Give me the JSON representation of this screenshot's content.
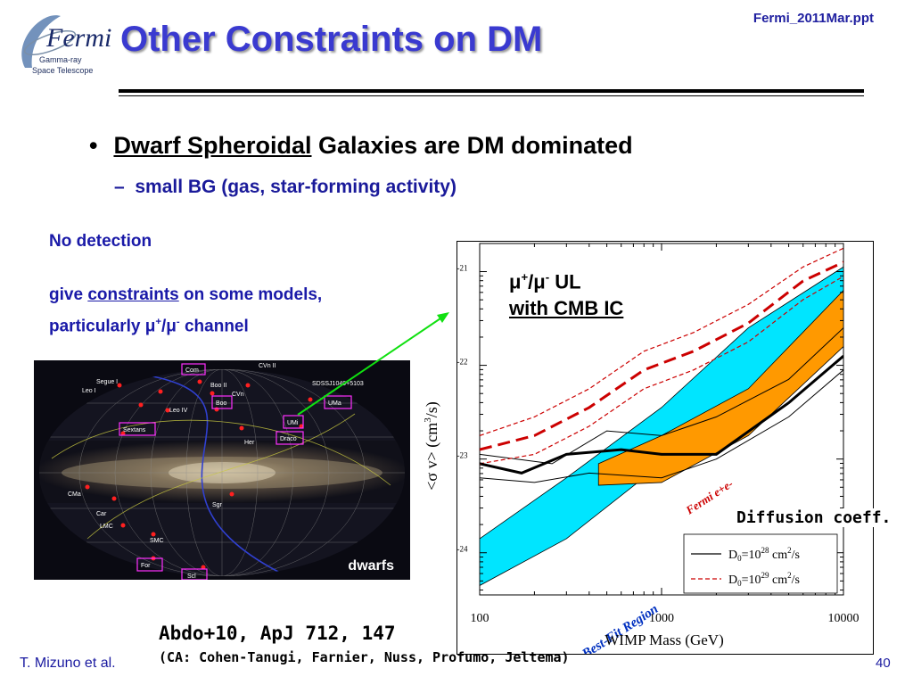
{
  "header": {
    "title": "Other Constraints on DM",
    "file_name": "Fermi_2011Mar.ppt",
    "logo": {
      "name": "Fermi",
      "line1": "Gamma-ray",
      "line2": "Space Telescope"
    }
  },
  "bullets": {
    "main_underlined": "Dwarf Spheroidal",
    "main_rest": " Galaxies are DM dominated",
    "sub": "small BG (gas, star-forming activity)"
  },
  "note": {
    "line1": "No detection",
    "line2_pre": "give ",
    "line2_link": "constraints",
    "line2_post": " on some models,",
    "line3_pre": "particularly ",
    "mu": "μ",
    "plus": "+",
    "slash": "/",
    "minus": "-",
    "line3_post": " channel"
  },
  "sky_map": {
    "label": "dwarfs",
    "boxed": [
      "Com",
      "UMa",
      "Boo",
      "UMi",
      "Draco",
      "Sextans",
      "For",
      "Scl"
    ],
    "plain": [
      "CVn II",
      "Segue I",
      "Leo I",
      "Boo II",
      "CVn",
      "Leo IV",
      "SDSSJ1049+5103",
      "Her",
      "CMa",
      "Car",
      "LMC",
      "SMC",
      "Sgr"
    ]
  },
  "plot_annotation": {
    "line1_mu": "μ",
    "plus": "+",
    "slash": "/",
    "minus": "-",
    "line1_suffix": " UL",
    "line2": "with CMB IC"
  },
  "diffusion_label": "Diffusion coeff.",
  "references": {
    "main": "Abdo+10, ApJ 712, 147",
    "authors": "(CA: Cohen-Tanugi, Farnier, Nuss, Profumo, Jeltema)"
  },
  "footer": {
    "author": "T. Mizuno et al.",
    "page": "40"
  },
  "chart_data": {
    "type": "line",
    "xlabel": "WIMP Mass (GeV)",
    "ylabel_main": "<σ v> (cm",
    "ylabel_exp": "3",
    "ylabel_tail": "/s)",
    "x_scale": "log",
    "y_scale": "log",
    "xlim": [
      100,
      10000
    ],
    "ylim_log10": [
      -24.45,
      -20.7
    ],
    "x_ticks": [
      100,
      1000,
      10000
    ],
    "x_tick_labels": [
      "100",
      "1000",
      "10000"
    ],
    "y_ticks_log10": [
      -24,
      -23,
      -22,
      -21
    ],
    "y_tick_labels": [
      {
        "base": "10",
        "exp": "-24"
      },
      {
        "base": "10",
        "exp": "-23"
      },
      {
        "base": "10",
        "exp": "-22"
      },
      {
        "base": "10",
        "exp": "-21"
      }
    ],
    "legend_position": "bottom-right",
    "legend": [
      {
        "base": "D",
        "sub": "0",
        "eq": "=10",
        "exp": "28",
        "unit": " cm",
        "unit_exp": "2",
        "tail": "/s",
        "style": "solid",
        "color": "#000000"
      },
      {
        "base": "D",
        "sub": "0",
        "eq": "=10",
        "exp": "29",
        "unit": " cm",
        "unit_exp": "2",
        "tail": "/s",
        "style": "dashed",
        "color": "#cc0000"
      }
    ],
    "bands": [
      {
        "name": "Pamela Best-Fit Region",
        "color": "#00e5ff",
        "upper": [
          [
            100,
            -23.85
          ],
          [
            300,
            -23.2
          ],
          [
            1000,
            -22.45
          ],
          [
            3000,
            -21.6
          ],
          [
            10000,
            -20.95
          ]
        ],
        "lower": [
          [
            100,
            -24.35
          ],
          [
            300,
            -23.85
          ],
          [
            1000,
            -23.05
          ],
          [
            3000,
            -22.3
          ],
          [
            10000,
            -21.55
          ]
        ]
      },
      {
        "name": "Fermi e+e-",
        "color": "#ff9900",
        "upper": [
          [
            450,
            -23.05
          ],
          [
            1000,
            -22.75
          ],
          [
            3000,
            -22.25
          ],
          [
            10000,
            -21.2
          ]
        ],
        "lower": [
          [
            450,
            -23.28
          ],
          [
            1000,
            -23.25
          ],
          [
            3000,
            -22.75
          ],
          [
            10000,
            -21.8
          ]
        ]
      }
    ],
    "series": [
      {
        "style": "solid",
        "color": "#000000",
        "width": 3,
        "points": [
          [
            100,
            -23.05
          ],
          [
            170,
            -23.15
          ],
          [
            300,
            -22.95
          ],
          [
            600,
            -22.9
          ],
          [
            1000,
            -22.95
          ],
          [
            2000,
            -22.95
          ],
          [
            5000,
            -22.4
          ],
          [
            10000,
            -21.9
          ]
        ]
      },
      {
        "style": "solid",
        "color": "#000000",
        "width": 1,
        "points": [
          [
            100,
            -22.95
          ],
          [
            250,
            -23.05
          ],
          [
            500,
            -22.7
          ],
          [
            1000,
            -22.75
          ],
          [
            2000,
            -22.55
          ],
          [
            5000,
            -22.15
          ],
          [
            10000,
            -21.6
          ]
        ]
      },
      {
        "style": "solid",
        "color": "#000000",
        "width": 1,
        "points": [
          [
            100,
            -23.2
          ],
          [
            200,
            -23.25
          ],
          [
            400,
            -23.15
          ],
          [
            1000,
            -23.2
          ],
          [
            2000,
            -23.0
          ],
          [
            5000,
            -22.55
          ],
          [
            10000,
            -22.05
          ]
        ]
      },
      {
        "style": "dashed",
        "color": "#cc0000",
        "width": 3,
        "points": [
          [
            100,
            -22.9
          ],
          [
            200,
            -22.75
          ],
          [
            400,
            -22.45
          ],
          [
            800,
            -22.05
          ],
          [
            1500,
            -21.85
          ],
          [
            3000,
            -21.55
          ],
          [
            6000,
            -21.1
          ],
          [
            10000,
            -20.9
          ]
        ]
      },
      {
        "style": "dashed",
        "color": "#cc0000",
        "width": 1.2,
        "points": [
          [
            100,
            -22.75
          ],
          [
            200,
            -22.55
          ],
          [
            400,
            -22.25
          ],
          [
            800,
            -21.85
          ],
          [
            1500,
            -21.65
          ],
          [
            3000,
            -21.35
          ],
          [
            6000,
            -20.95
          ],
          [
            10000,
            -20.75
          ]
        ]
      },
      {
        "style": "dashed",
        "color": "#cc0000",
        "width": 1.2,
        "points": [
          [
            100,
            -23.05
          ],
          [
            200,
            -22.95
          ],
          [
            400,
            -22.65
          ],
          [
            800,
            -22.25
          ],
          [
            1500,
            -22.05
          ],
          [
            3000,
            -21.75
          ],
          [
            6000,
            -21.3
          ],
          [
            10000,
            -21.05
          ]
        ]
      }
    ]
  }
}
